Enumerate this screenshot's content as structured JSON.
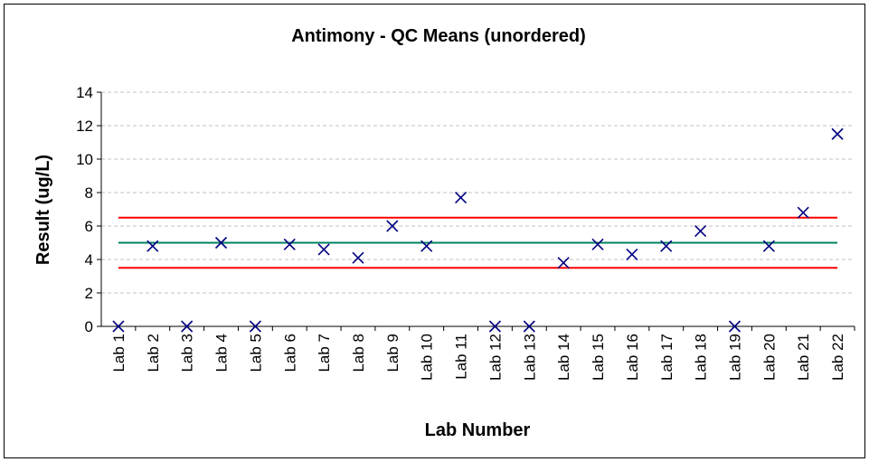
{
  "chart_data": {
    "type": "scatter",
    "title": "Antimony - QC Means (unordered)",
    "x_label": "Lab Number",
    "y_label": "Result (ug/L)",
    "categories": [
      "Lab 1",
      "Lab 2",
      "Lab 3",
      "Lab 4",
      "Lab 5",
      "Lab 6",
      "Lab 7",
      "Lab 8",
      "Lab 9",
      "Lab 10",
      "Lab 11",
      "Lab 12",
      "Lab 13",
      "Lab 14",
      "Lab 15",
      "Lab 16",
      "Lab 17",
      "Lab 18",
      "Lab 19",
      "Lab 20",
      "Lab 21",
      "Lab 22"
    ],
    "values": [
      0,
      4.8,
      0,
      5.0,
      0,
      4.9,
      4.6,
      4.1,
      6.0,
      4.8,
      7.7,
      0,
      0,
      3.8,
      4.9,
      4.3,
      4.8,
      5.7,
      0,
      4.8,
      6.8,
      11.5
    ],
    "color": "#000080",
    "reference_lines": [
      {
        "value": 6.5,
        "color": "#ff0000"
      },
      {
        "value": 5,
        "color": "#008060"
      },
      {
        "value": 3.5,
        "color": "#ff0000"
      }
    ],
    "ylim": [
      0,
      14
    ],
    "yticks": [
      0,
      2,
      4,
      6,
      8,
      10,
      12,
      14
    ],
    "grid": true
  }
}
